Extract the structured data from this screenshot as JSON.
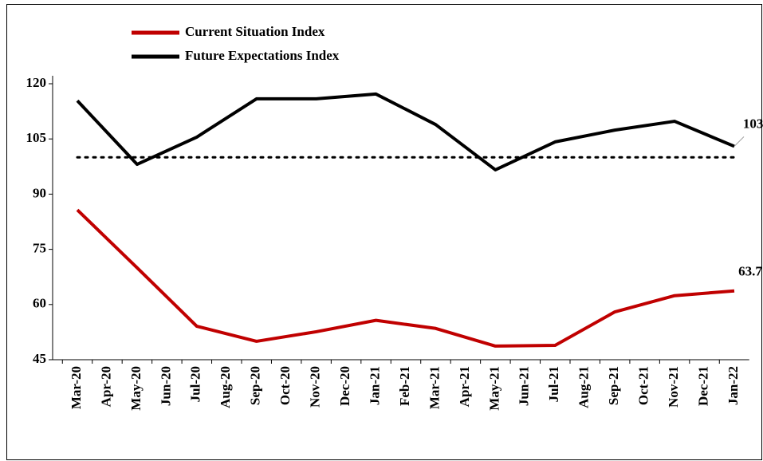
{
  "chart_data": {
    "type": "line",
    "xticks": [
      "Mar-20",
      "Apr-20",
      "May-20",
      "Jun-20",
      "Jul-20",
      "Aug-20",
      "Sep-20",
      "Oct-20",
      "Nov-20",
      "Dec-20",
      "Jan-21",
      "Feb-21",
      "Mar-21",
      "Apr-21",
      "May-21",
      "Jun-21",
      "Jul-21",
      "Aug-21",
      "Sep-21",
      "Oct-21",
      "Nov-21",
      "Dec-21",
      "Jan-22"
    ],
    "x": [
      "Mar-20",
      "May-20",
      "Jul-20",
      "Sep-20",
      "Nov-20",
      "Jan-21",
      "Mar-21",
      "May-21",
      "Jul-21",
      "Sep-21",
      "Nov-21",
      "Jan-22"
    ],
    "series": [
      {
        "name": "Current Situation Index",
        "color": "#c00000",
        "values": [
          85.7,
          70.0,
          54.1,
          50.0,
          52.6,
          55.7,
          53.5,
          48.7,
          48.9,
          58.0,
          62.4,
          63.7
        ],
        "value_labels": [
          null,
          null,
          null,
          null,
          null,
          null,
          null,
          null,
          null,
          null,
          null,
          "63.7"
        ]
      },
      {
        "name": "Future Expectations Index",
        "color": "#000000",
        "values": [
          115.4,
          98.1,
          105.5,
          115.9,
          115.9,
          117.2,
          108.9,
          96.6,
          104.2,
          107.4,
          109.8,
          103.0
        ],
        "value_labels": [
          null,
          null,
          null,
          null,
          null,
          null,
          null,
          null,
          null,
          null,
          null,
          "103.0"
        ]
      }
    ],
    "ref_line": 100,
    "ylim": [
      45,
      120
    ],
    "yticks": [
      45,
      60,
      75,
      90,
      105,
      120
    ]
  }
}
